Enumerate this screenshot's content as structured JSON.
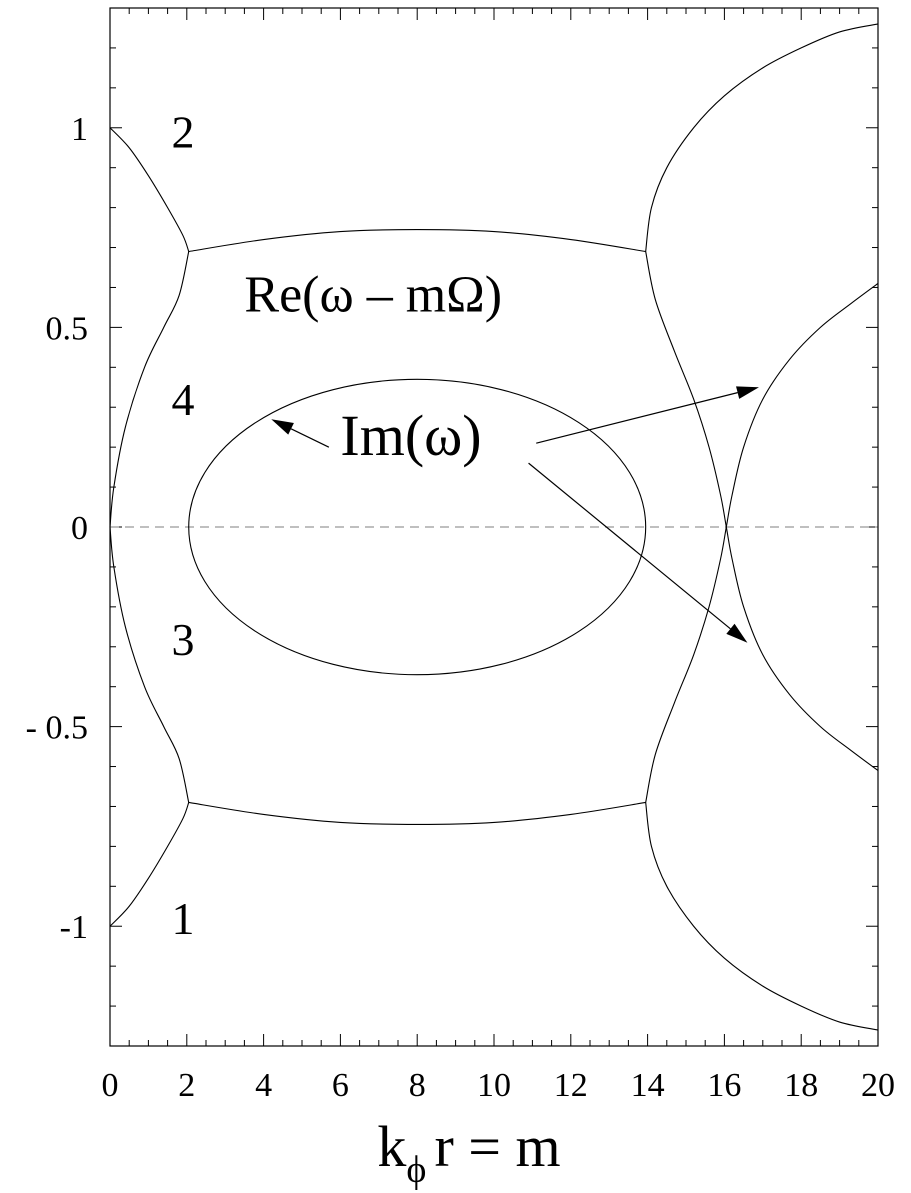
{
  "chart_data": {
    "type": "line",
    "xlabel": "k",
    "xlabel_sub": "ϕ",
    "xlabel_rest": "r = m",
    "xlim": [
      0,
      20
    ],
    "ylim": [
      -1.3,
      1.3
    ],
    "xticks": [
      0,
      2,
      4,
      6,
      8,
      10,
      12,
      14,
      16,
      18,
      20
    ],
    "yticks": [
      {
        "value": 1,
        "label": "1"
      },
      {
        "value": 0.5,
        "label": "0.5"
      },
      {
        "value": 0,
        "label": "0"
      },
      {
        "value": -0.5,
        "label": "- 0.5"
      },
      {
        "value": -1,
        "label": "-1"
      }
    ],
    "zero_line": "dashed",
    "labels": {
      "re": "Re(ω – mΩ)",
      "im": "Im(ω)",
      "branch1": "1",
      "branch2": "2",
      "branch3": "3",
      "branch4": "4"
    },
    "series": [
      {
        "kind": "Re",
        "points": [
          [
            0,
            1.0
          ],
          [
            0.5,
            0.95
          ],
          [
            1.0,
            0.88
          ],
          [
            1.5,
            0.8
          ],
          [
            1.9,
            0.73
          ],
          [
            2.05,
            0.69
          ]
        ]
      },
      {
        "kind": "Re",
        "points": [
          [
            0,
            -1.0
          ],
          [
            0.5,
            -0.95
          ],
          [
            1.0,
            -0.88
          ],
          [
            1.5,
            -0.8
          ],
          [
            1.9,
            -0.73
          ],
          [
            2.05,
            -0.69
          ]
        ]
      },
      {
        "kind": "Re",
        "points": [
          [
            0,
            0.0
          ],
          [
            0.1,
            0.1
          ],
          [
            0.4,
            0.25
          ],
          [
            0.9,
            0.4
          ],
          [
            1.4,
            0.5
          ],
          [
            1.8,
            0.58
          ],
          [
            2.05,
            0.69
          ]
        ]
      },
      {
        "kind": "Re",
        "points": [
          [
            0,
            0.0
          ],
          [
            0.1,
            -0.1
          ],
          [
            0.4,
            -0.25
          ],
          [
            0.9,
            -0.4
          ],
          [
            1.4,
            -0.5
          ],
          [
            1.8,
            -0.58
          ],
          [
            2.05,
            -0.69
          ]
        ]
      },
      {
        "kind": "Re",
        "points": [
          [
            2.05,
            0.69
          ],
          [
            4,
            0.72
          ],
          [
            6,
            0.74
          ],
          [
            8,
            0.745
          ],
          [
            10,
            0.74
          ],
          [
            12,
            0.72
          ],
          [
            13.95,
            0.69
          ]
        ]
      },
      {
        "kind": "Re",
        "points": [
          [
            2.05,
            -0.69
          ],
          [
            4,
            -0.72
          ],
          [
            6,
            -0.74
          ],
          [
            8,
            -0.745
          ],
          [
            10,
            -0.74
          ],
          [
            12,
            -0.72
          ],
          [
            13.95,
            -0.69
          ]
        ]
      },
      {
        "kind": "Re",
        "points": [
          [
            13.95,
            0.69
          ],
          [
            14.1,
            0.8
          ],
          [
            14.5,
            0.9
          ],
          [
            15.2,
            1.0
          ],
          [
            16,
            1.08
          ],
          [
            17,
            1.15
          ],
          [
            18,
            1.2
          ],
          [
            19,
            1.24
          ],
          [
            20,
            1.26
          ]
        ]
      },
      {
        "kind": "Re",
        "points": [
          [
            13.95,
            -0.69
          ],
          [
            14.1,
            -0.8
          ],
          [
            14.5,
            -0.9
          ],
          [
            15.2,
            -1.0
          ],
          [
            16,
            -1.08
          ],
          [
            17,
            -1.15
          ],
          [
            18,
            -1.2
          ],
          [
            19,
            -1.24
          ],
          [
            20,
            -1.26
          ]
        ]
      },
      {
        "kind": "Re",
        "points": [
          [
            13.95,
            0.69
          ],
          [
            14.2,
            0.57
          ],
          [
            14.7,
            0.44
          ],
          [
            15.2,
            0.32
          ],
          [
            15.6,
            0.2
          ],
          [
            15.9,
            0.08
          ],
          [
            16.05,
            0.0
          ],
          [
            16.2,
            -0.08
          ],
          [
            16.5,
            -0.2
          ],
          [
            17.0,
            -0.32
          ],
          [
            17.7,
            -0.42
          ],
          [
            18.5,
            -0.5
          ],
          [
            19.3,
            -0.56
          ],
          [
            20,
            -0.61
          ]
        ]
      },
      {
        "kind": "Re",
        "points": [
          [
            13.95,
            -0.69
          ],
          [
            14.2,
            -0.57
          ],
          [
            14.7,
            -0.44
          ],
          [
            15.2,
            -0.32
          ],
          [
            15.6,
            -0.2
          ],
          [
            15.9,
            -0.08
          ],
          [
            16.05,
            0.0
          ],
          [
            16.2,
            0.08
          ],
          [
            16.5,
            0.2
          ],
          [
            17.0,
            0.32
          ],
          [
            17.7,
            0.42
          ],
          [
            18.5,
            0.5
          ],
          [
            19.3,
            0.56
          ],
          [
            20,
            0.61
          ]
        ]
      },
      {
        "kind": "Im",
        "shape": "ellipse",
        "center": [
          8,
          0
        ],
        "semi_x": 5.95,
        "semi_y": 0.37
      }
    ],
    "arrows": [
      {
        "from": [
          5.7,
          0.2
        ],
        "to": [
          4.2,
          0.27
        ]
      },
      {
        "from": [
          11.1,
          0.21
        ],
        "to": [
          16.9,
          0.35
        ]
      },
      {
        "from": [
          10.9,
          0.16
        ],
        "to": [
          16.6,
          -0.29
        ]
      }
    ],
    "annotation_positions": {
      "branch2": [
        1.6,
        0.95
      ],
      "branch4": [
        1.6,
        0.28
      ],
      "branch3": [
        1.6,
        -0.32
      ],
      "branch1": [
        1.6,
        -1.02
      ],
      "re": [
        3.5,
        0.54
      ],
      "im": [
        6.0,
        0.18
      ]
    }
  }
}
